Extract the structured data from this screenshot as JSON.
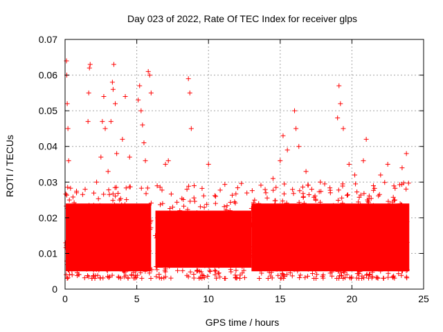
{
  "chart_data": {
    "type": "scatter",
    "title": "Day 023 of 2022, Rate Of TEC Index for receiver glps",
    "xlabel": "GPS time / hours",
    "ylabel": "ROTI / TECUs",
    "xlim": [
      0,
      25
    ],
    "ylim": [
      0,
      0.07
    ],
    "x_ticks": [
      "0",
      "5",
      "10",
      "15",
      "20",
      "25"
    ],
    "y_ticks": [
      "0",
      "0.01",
      "0.02",
      "0.03",
      "0.04",
      "0.05",
      "0.06",
      "0.07"
    ],
    "grid": true,
    "legend": "none",
    "marker": "+",
    "color": "#ff0000",
    "series": [
      {
        "points": [
          [
            0.05,
            0.013
          ],
          [
            0.1,
            0.064
          ],
          [
            0.12,
            0.06
          ],
          [
            0.15,
            0.052
          ],
          [
            0.2,
            0.045
          ],
          [
            0.25,
            0.036
          ],
          [
            0.3,
            0.025
          ],
          [
            0.4,
            0.02
          ],
          [
            0.5,
            0.014
          ],
          [
            0.6,
            0.009
          ],
          [
            0.8,
            0.027
          ],
          [
            1.0,
            0.019
          ],
          [
            1.2,
            0.015
          ],
          [
            1.4,
            0.028
          ],
          [
            1.6,
            0.047
          ],
          [
            1.65,
            0.055
          ],
          [
            1.7,
            0.062
          ],
          [
            1.75,
            0.063
          ],
          [
            2.0,
            0.022
          ],
          [
            2.2,
            0.03
          ],
          [
            2.5,
            0.037
          ],
          [
            2.6,
            0.047
          ],
          [
            2.7,
            0.054
          ],
          [
            2.8,
            0.045
          ],
          [
            3.0,
            0.033
          ],
          [
            3.2,
            0.047
          ],
          [
            3.3,
            0.058
          ],
          [
            3.35,
            0.056
          ],
          [
            3.4,
            0.063
          ],
          [
            3.5,
            0.052
          ],
          [
            3.6,
            0.038
          ],
          [
            3.8,
            0.025
          ],
          [
            4.0,
            0.042
          ],
          [
            4.2,
            0.054
          ],
          [
            4.5,
            0.037
          ],
          [
            4.8,
            0.021
          ],
          [
            5.1,
            0.053
          ],
          [
            5.2,
            0.057
          ],
          [
            5.3,
            0.05
          ],
          [
            5.4,
            0.046
          ],
          [
            5.5,
            0.041
          ],
          [
            5.6,
            0.036
          ],
          [
            5.8,
            0.061
          ],
          [
            5.9,
            0.06
          ],
          [
            6.0,
            0.055
          ],
          [
            6.3,
            0.015
          ],
          [
            6.8,
            0.024
          ],
          [
            7.0,
            0.035
          ],
          [
            7.2,
            0.036
          ],
          [
            7.5,
            0.023
          ],
          [
            8.0,
            0.022
          ],
          [
            8.5,
            0.028
          ],
          [
            8.6,
            0.059
          ],
          [
            8.7,
            0.055
          ],
          [
            8.8,
            0.045
          ],
          [
            9.0,
            0.029
          ],
          [
            9.5,
            0.021
          ],
          [
            10.0,
            0.035
          ],
          [
            10.5,
            0.026
          ],
          [
            11.0,
            0.018
          ],
          [
            11.5,
            0.022
          ],
          [
            12.0,
            0.016
          ],
          [
            12.5,
            0.02
          ],
          [
            13.0,
            0.018
          ],
          [
            13.5,
            0.024
          ],
          [
            14.0,
            0.027
          ],
          [
            14.5,
            0.031
          ],
          [
            15.0,
            0.036
          ],
          [
            15.2,
            0.043
          ],
          [
            15.5,
            0.039
          ],
          [
            16.0,
            0.05
          ],
          [
            16.1,
            0.045
          ],
          [
            16.3,
            0.04
          ],
          [
            16.8,
            0.033
          ],
          [
            17.2,
            0.028
          ],
          [
            17.8,
            0.03
          ],
          [
            18.5,
            0.027
          ],
          [
            19.0,
            0.048
          ],
          [
            19.1,
            0.057
          ],
          [
            19.2,
            0.052
          ],
          [
            19.4,
            0.045
          ],
          [
            19.8,
            0.035
          ],
          [
            20.2,
            0.032
          ],
          [
            20.8,
            0.036
          ],
          [
            21.0,
            0.042
          ],
          [
            21.5,
            0.029
          ],
          [
            22.0,
            0.032
          ],
          [
            22.5,
            0.035
          ],
          [
            23.0,
            0.025
          ],
          [
            23.5,
            0.034
          ],
          [
            23.8,
            0.038
          ]
        ]
      }
    ]
  }
}
